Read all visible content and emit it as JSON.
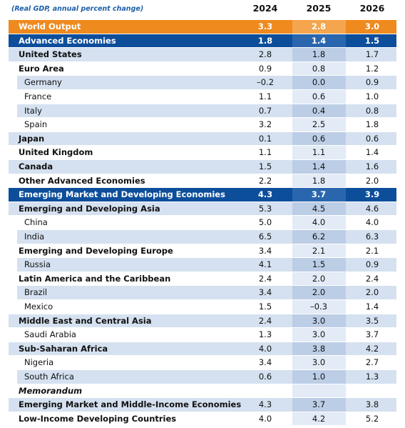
{
  "table": {
    "caption": "(Real GDP, annual percent change)",
    "columns": [
      "2024",
      "2025",
      "2026"
    ],
    "rows": [
      [
        "World Output",
        "3.3",
        "2.8",
        "3.0"
      ],
      [
        "Advanced Economies",
        "1.8",
        "1.4",
        "1.5"
      ],
      [
        "United States",
        "2.8",
        "1.8",
        "1.7"
      ],
      [
        "Euro Area",
        "0.9",
        "0.8",
        "1.2"
      ],
      [
        "Germany",
        "–0.2",
        "0.0",
        "0.9"
      ],
      [
        "France",
        "1.1",
        "0.6",
        "1.0"
      ],
      [
        "Italy",
        "0.7",
        "0.4",
        "0.8"
      ],
      [
        "Spain",
        "3.2",
        "2.5",
        "1.8"
      ],
      [
        "Japan",
        "0.1",
        "0.6",
        "0.6"
      ],
      [
        "United Kingdom",
        "1.1",
        "1.1",
        "1.4"
      ],
      [
        "Canada",
        "1.5",
        "1.4",
        "1.6"
      ],
      [
        "Other Advanced Economies",
        "2.2",
        "1.8",
        "2.0"
      ],
      [
        "Emerging Market and Developing Economies",
        "4.3",
        "3.7",
        "3.9"
      ],
      [
        "Emerging and Developing Asia",
        "5.3",
        "4.5",
        "4.6"
      ],
      [
        "China",
        "5.0",
        "4.0",
        "4.0"
      ],
      [
        "India",
        "6.5",
        "6.2",
        "6.3"
      ],
      [
        "Emerging and Developing Europe",
        "3.4",
        "2.1",
        "2.1"
      ],
      [
        "Russia",
        "4.1",
        "1.5",
        "0.9"
      ],
      [
        "Latin America and the Caribbean",
        "2.4",
        "2.0",
        "2.4"
      ],
      [
        "Brazil",
        "3.4",
        "2.0",
        "2.0"
      ],
      [
        "Mexico",
        "1.5",
        "–0.3",
        "1.4"
      ],
      [
        "Middle East and Central Asia",
        "2.4",
        "3.0",
        "3.5"
      ],
      [
        "Saudi Arabia",
        "1.3",
        "3.0",
        "3.7"
      ],
      [
        "Sub-Saharan Africa",
        "4.0",
        "3.8",
        "4.2"
      ],
      [
        "Nigeria",
        "3.4",
        "3.0",
        "2.7"
      ],
      [
        "South Africa",
        "0.6",
        "1.0",
        "1.3"
      ],
      [
        "Memorandum"
      ],
      [
        "Emerging Market and Middle-Income Economies",
        "4.3",
        "3.7",
        "3.8"
      ],
      [
        "Low-Income Developing Countries",
        "4.0",
        "4.2",
        "5.2"
      ]
    ]
  }
}
